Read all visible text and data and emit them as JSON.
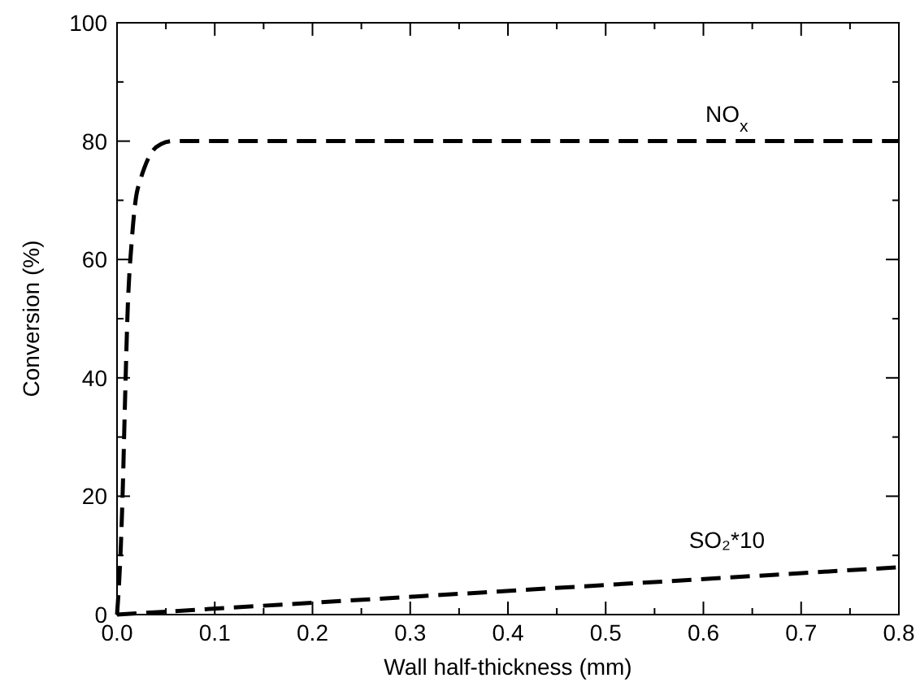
{
  "chart_data": {
    "type": "line",
    "xlabel": "Wall half-thickness (mm)",
    "ylabel": "Conversion (%)",
    "xlim": [
      0,
      0.8
    ],
    "ylim": [
      0,
      100
    ],
    "xticks": [
      "0.0",
      {
        "value": 0.05,
        "label": null
      },
      0.1,
      {
        "value": 0.15,
        "label": null
      },
      0.2,
      {
        "value": 0.25,
        "label": null
      },
      0.3,
      {
        "value": 0.35,
        "label": null
      },
      0.4,
      {
        "value": 0.45,
        "label": null
      },
      0.5,
      {
        "value": 0.55,
        "label": null
      },
      0.6,
      {
        "value": 0.65,
        "label": null
      },
      0.7,
      {
        "value": 0.75,
        "label": null
      },
      0.8
    ],
    "yticks": [
      0,
      {
        "value": 10,
        "label": null
      },
      20,
      {
        "value": 30,
        "label": null
      },
      40,
      {
        "value": 50,
        "label": null
      },
      60,
      {
        "value": 70,
        "label": null
      },
      80,
      {
        "value": 90,
        "label": null
      },
      100
    ],
    "line_style": "dashed",
    "marker": "none",
    "grid": false,
    "series": [
      {
        "name": "NO$_{x}$",
        "color": "#000000",
        "x": [
          0,
          0.002,
          0.004,
          0.006,
          0.008,
          0.011,
          0.015,
          0.019,
          0.024,
          0.028,
          0.035,
          0.045,
          0.057,
          0.1,
          0.8
        ],
        "values": [
          0,
          5,
          12,
          22,
          35,
          52,
          63,
          70,
          73.5,
          75.5,
          78,
          79.5,
          80,
          80,
          80
        ]
      },
      {
        "name": "SO₂*10",
        "color": "#000000",
        "x": [
          0,
          0.8
        ],
        "values": [
          0,
          8
        ]
      }
    ]
  }
}
